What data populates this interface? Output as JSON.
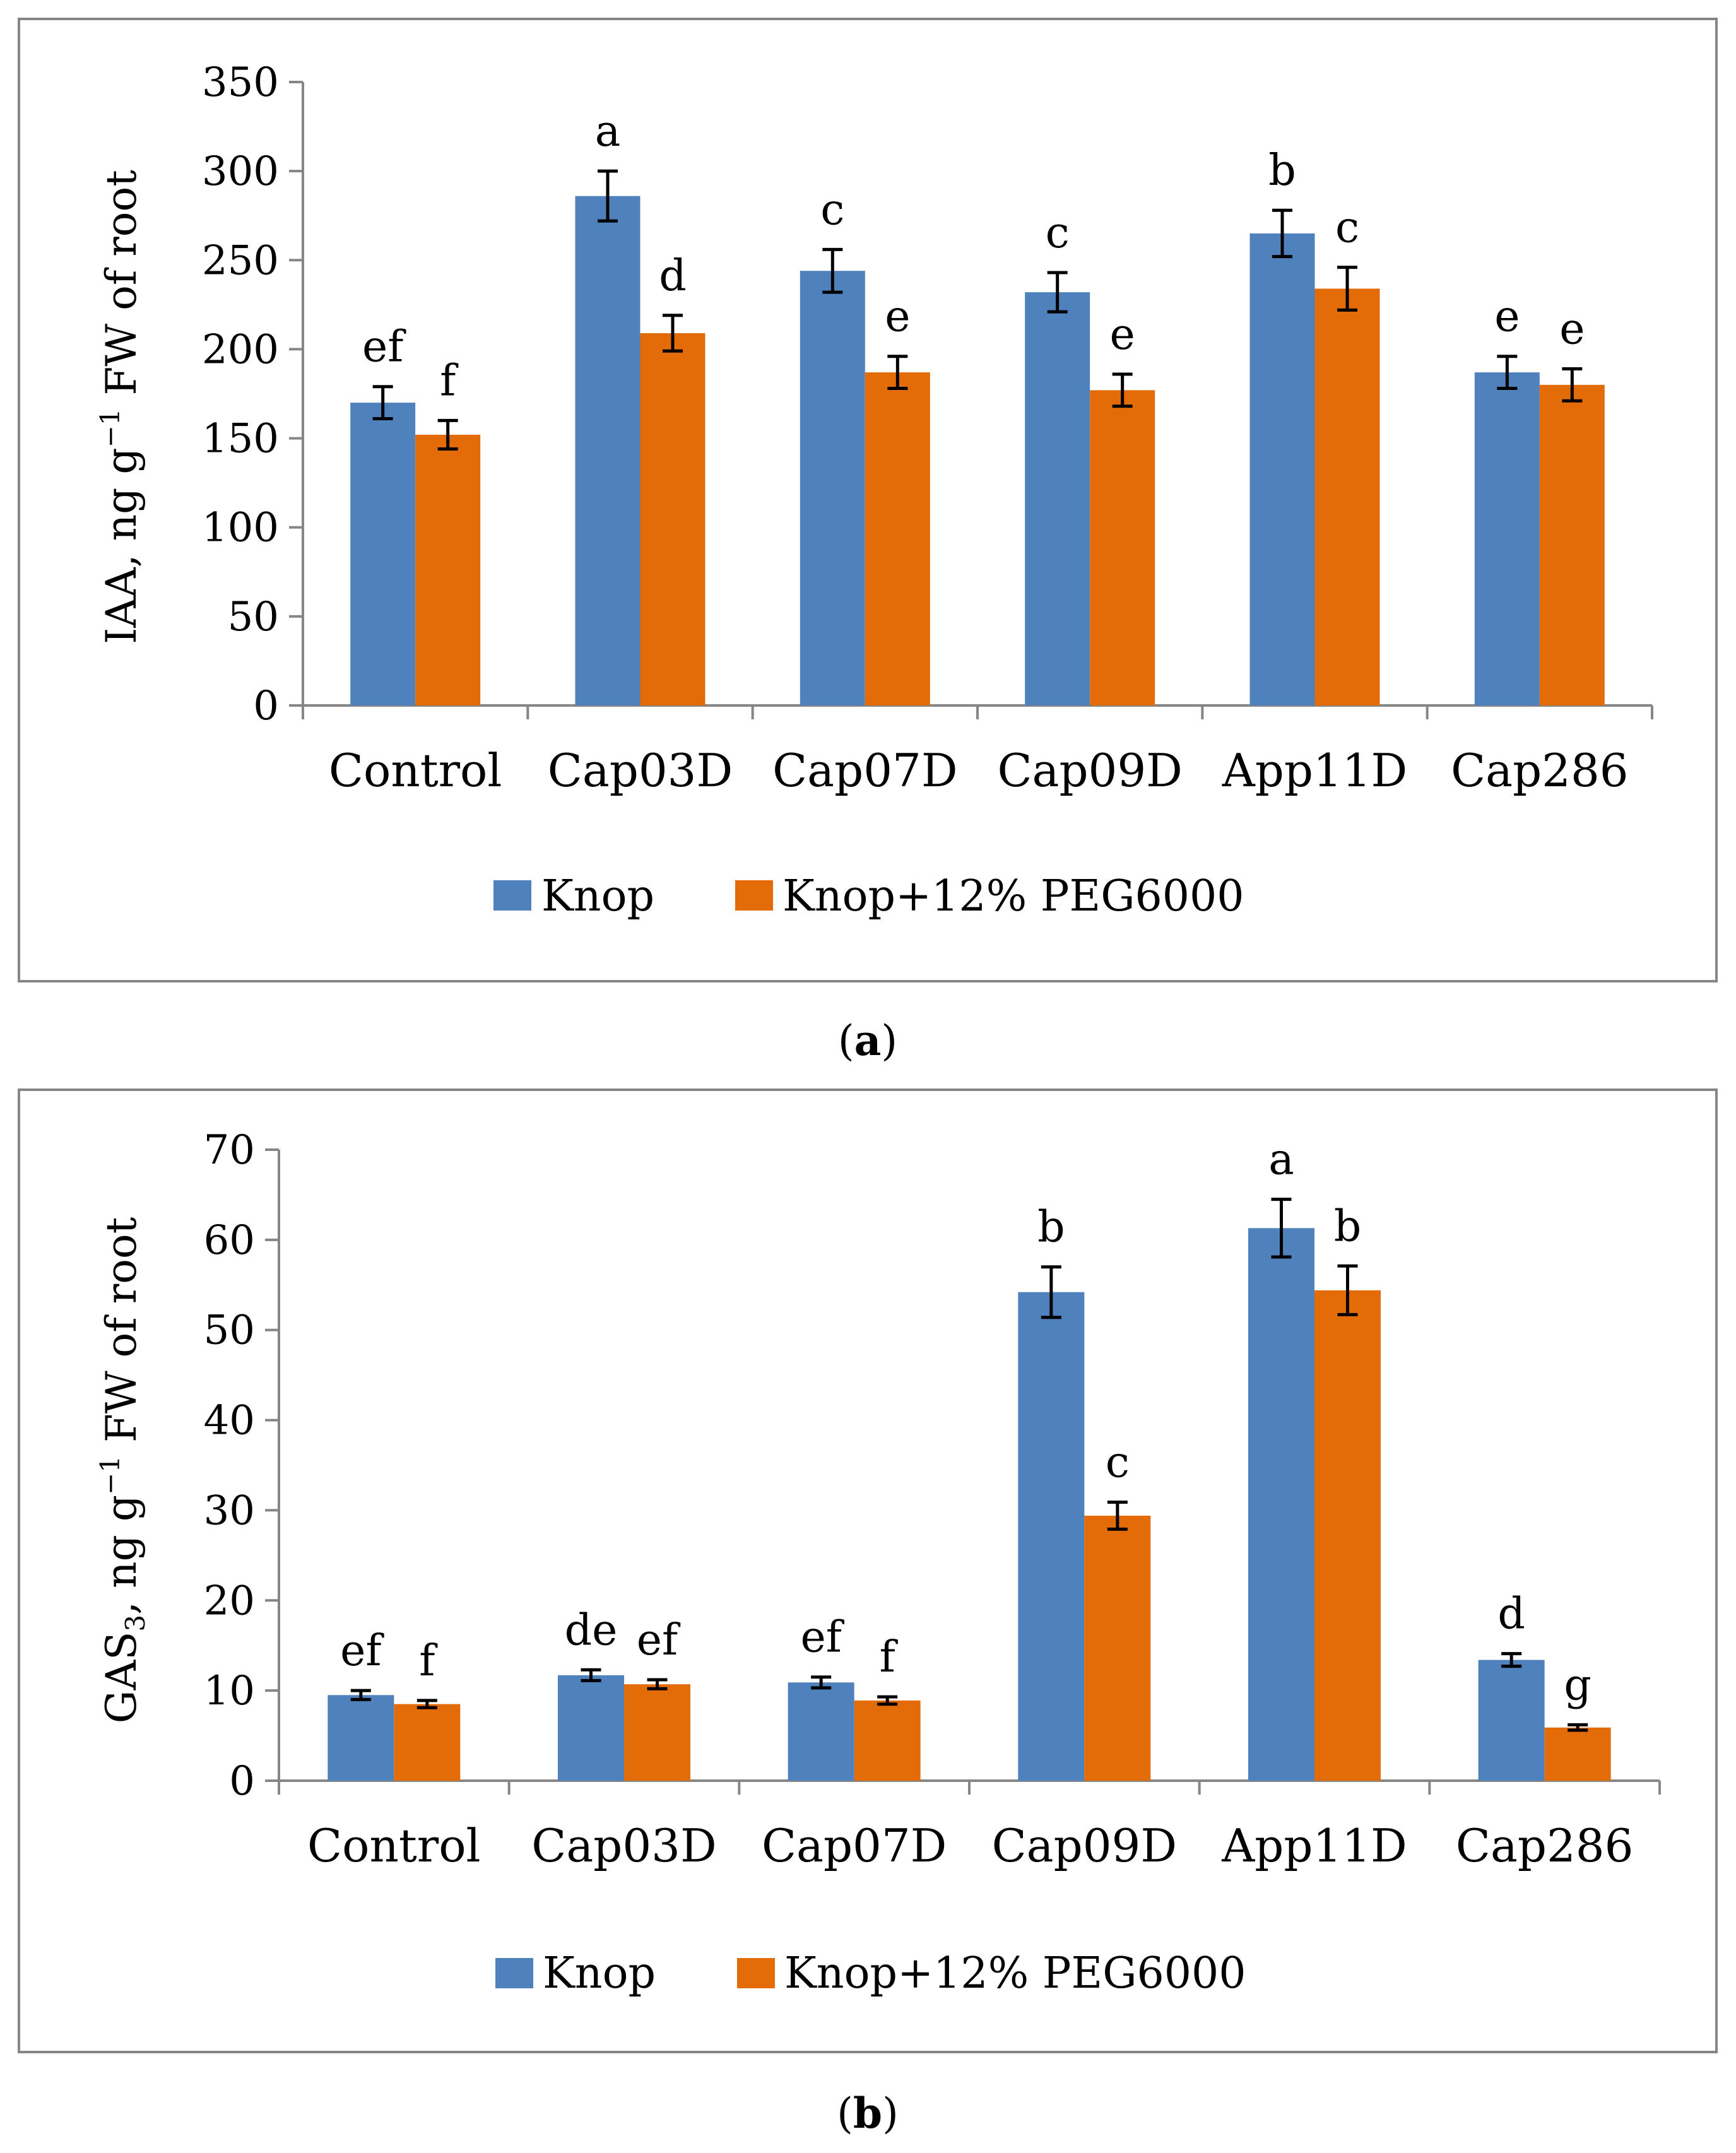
{
  "colors": {
    "series1": "#4f81bd",
    "series2": "#e36c09",
    "axis": "#868686",
    "text": "#000000"
  },
  "chart_data": [
    {
      "type": "bar",
      "panel_label": "a",
      "ylabel": "IAA, ng g−1 FW of root",
      "ylim": [
        0,
        350
      ],
      "ytick_step": 50,
      "yticks": [
        "0",
        "50",
        "100",
        "150",
        "200",
        "250",
        "300",
        "350"
      ],
      "categories": [
        "Control",
        "Cap03D",
        "Cap07D",
        "Cap09D",
        "App11D",
        "Cap286"
      ],
      "series": [
        {
          "name": "Knop",
          "values": [
            170,
            286,
            244,
            232,
            265,
            187
          ],
          "errors": [
            9,
            14,
            12,
            11,
            13,
            9
          ],
          "letters": [
            "ef",
            "a",
            "c",
            "c",
            "b",
            "e"
          ]
        },
        {
          "name": "Knop+12% PEG6000",
          "values": [
            152,
            209,
            187,
            177,
            234,
            180
          ],
          "errors": [
            8,
            10,
            9,
            9,
            12,
            9
          ],
          "letters": [
            "f",
            "d",
            "e",
            "e",
            "c",
            "e"
          ]
        }
      ],
      "legend_position": "bottom"
    },
    {
      "type": "bar",
      "panel_label": "b",
      "ylabel": "GAS3, ng g−1 FW of root",
      "ylim": [
        0,
        70
      ],
      "ytick_step": 10,
      "yticks": [
        "0",
        "10",
        "20",
        "30",
        "40",
        "50",
        "60",
        "70"
      ],
      "categories": [
        "Control",
        "Cap03D",
        "Cap07D",
        "Cap09D",
        "App11D",
        "Cap286"
      ],
      "series": [
        {
          "name": "Knop",
          "values": [
            9.5,
            11.7,
            10.9,
            54.2,
            61.3,
            13.4
          ],
          "errors": [
            0.5,
            0.6,
            0.6,
            2.8,
            3.2,
            0.7
          ],
          "letters": [
            "ef",
            "de",
            "ef",
            "b",
            "a",
            "d"
          ]
        },
        {
          "name": "Knop+12% PEG6000",
          "values": [
            8.5,
            10.7,
            8.9,
            29.4,
            54.4,
            5.9
          ],
          "errors": [
            0.4,
            0.5,
            0.4,
            1.5,
            2.7,
            0.3
          ],
          "letters": [
            "f",
            "ef",
            "f",
            "c",
            "b",
            "g"
          ]
        }
      ],
      "legend_position": "bottom"
    }
  ]
}
